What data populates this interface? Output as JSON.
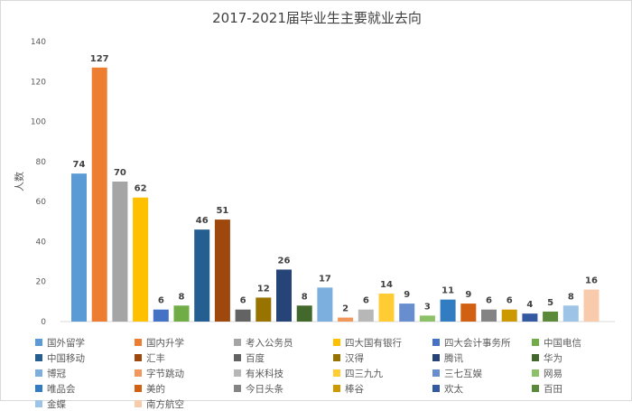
{
  "chart_data": {
    "type": "bar",
    "title": "2017-2021届毕业生主要就业去向",
    "xlabel": "",
    "ylabel": "人数",
    "ylim": [
      0,
      140
    ],
    "yticks": [
      0,
      20,
      40,
      60,
      80,
      100,
      120,
      140
    ],
    "grid": false,
    "legend_position": "bottom",
    "categories": [
      "国外留学",
      "国内升学",
      "考入公务员",
      "四大国有银行",
      "四大会计事务所",
      "中国电信",
      "中国移动",
      "汇丰",
      "百度",
      "汉得",
      "腾讯",
      "华为",
      "博冠",
      "字节跳动",
      "有米科技",
      "四三九九",
      "三七互娱",
      "网易",
      "唯品会",
      "美的",
      "今日头条",
      "棒谷",
      "欢太",
      "百田",
      "金蝶",
      "南方航空"
    ],
    "values": [
      74,
      127,
      70,
      62,
      6,
      8,
      46,
      51,
      6,
      12,
      26,
      8,
      17,
      2,
      6,
      14,
      9,
      3,
      11,
      9,
      6,
      6,
      4,
      5,
      8,
      16
    ],
    "colors": [
      "#5b9bd5",
      "#ed7d31",
      "#a5a5a5",
      "#ffc000",
      "#4472c4",
      "#70ad47",
      "#255e91",
      "#9e480e",
      "#636363",
      "#997300",
      "#264478",
      "#43682b",
      "#7cafdd",
      "#f1975a",
      "#b7b7b7",
      "#ffcd33",
      "#698ed0",
      "#8cc168",
      "#327dc2",
      "#d26012",
      "#848484",
      "#cc9a00",
      "#335aa1",
      "#5a8a39",
      "#9dc3e6",
      "#f8cbad"
    ]
  }
}
